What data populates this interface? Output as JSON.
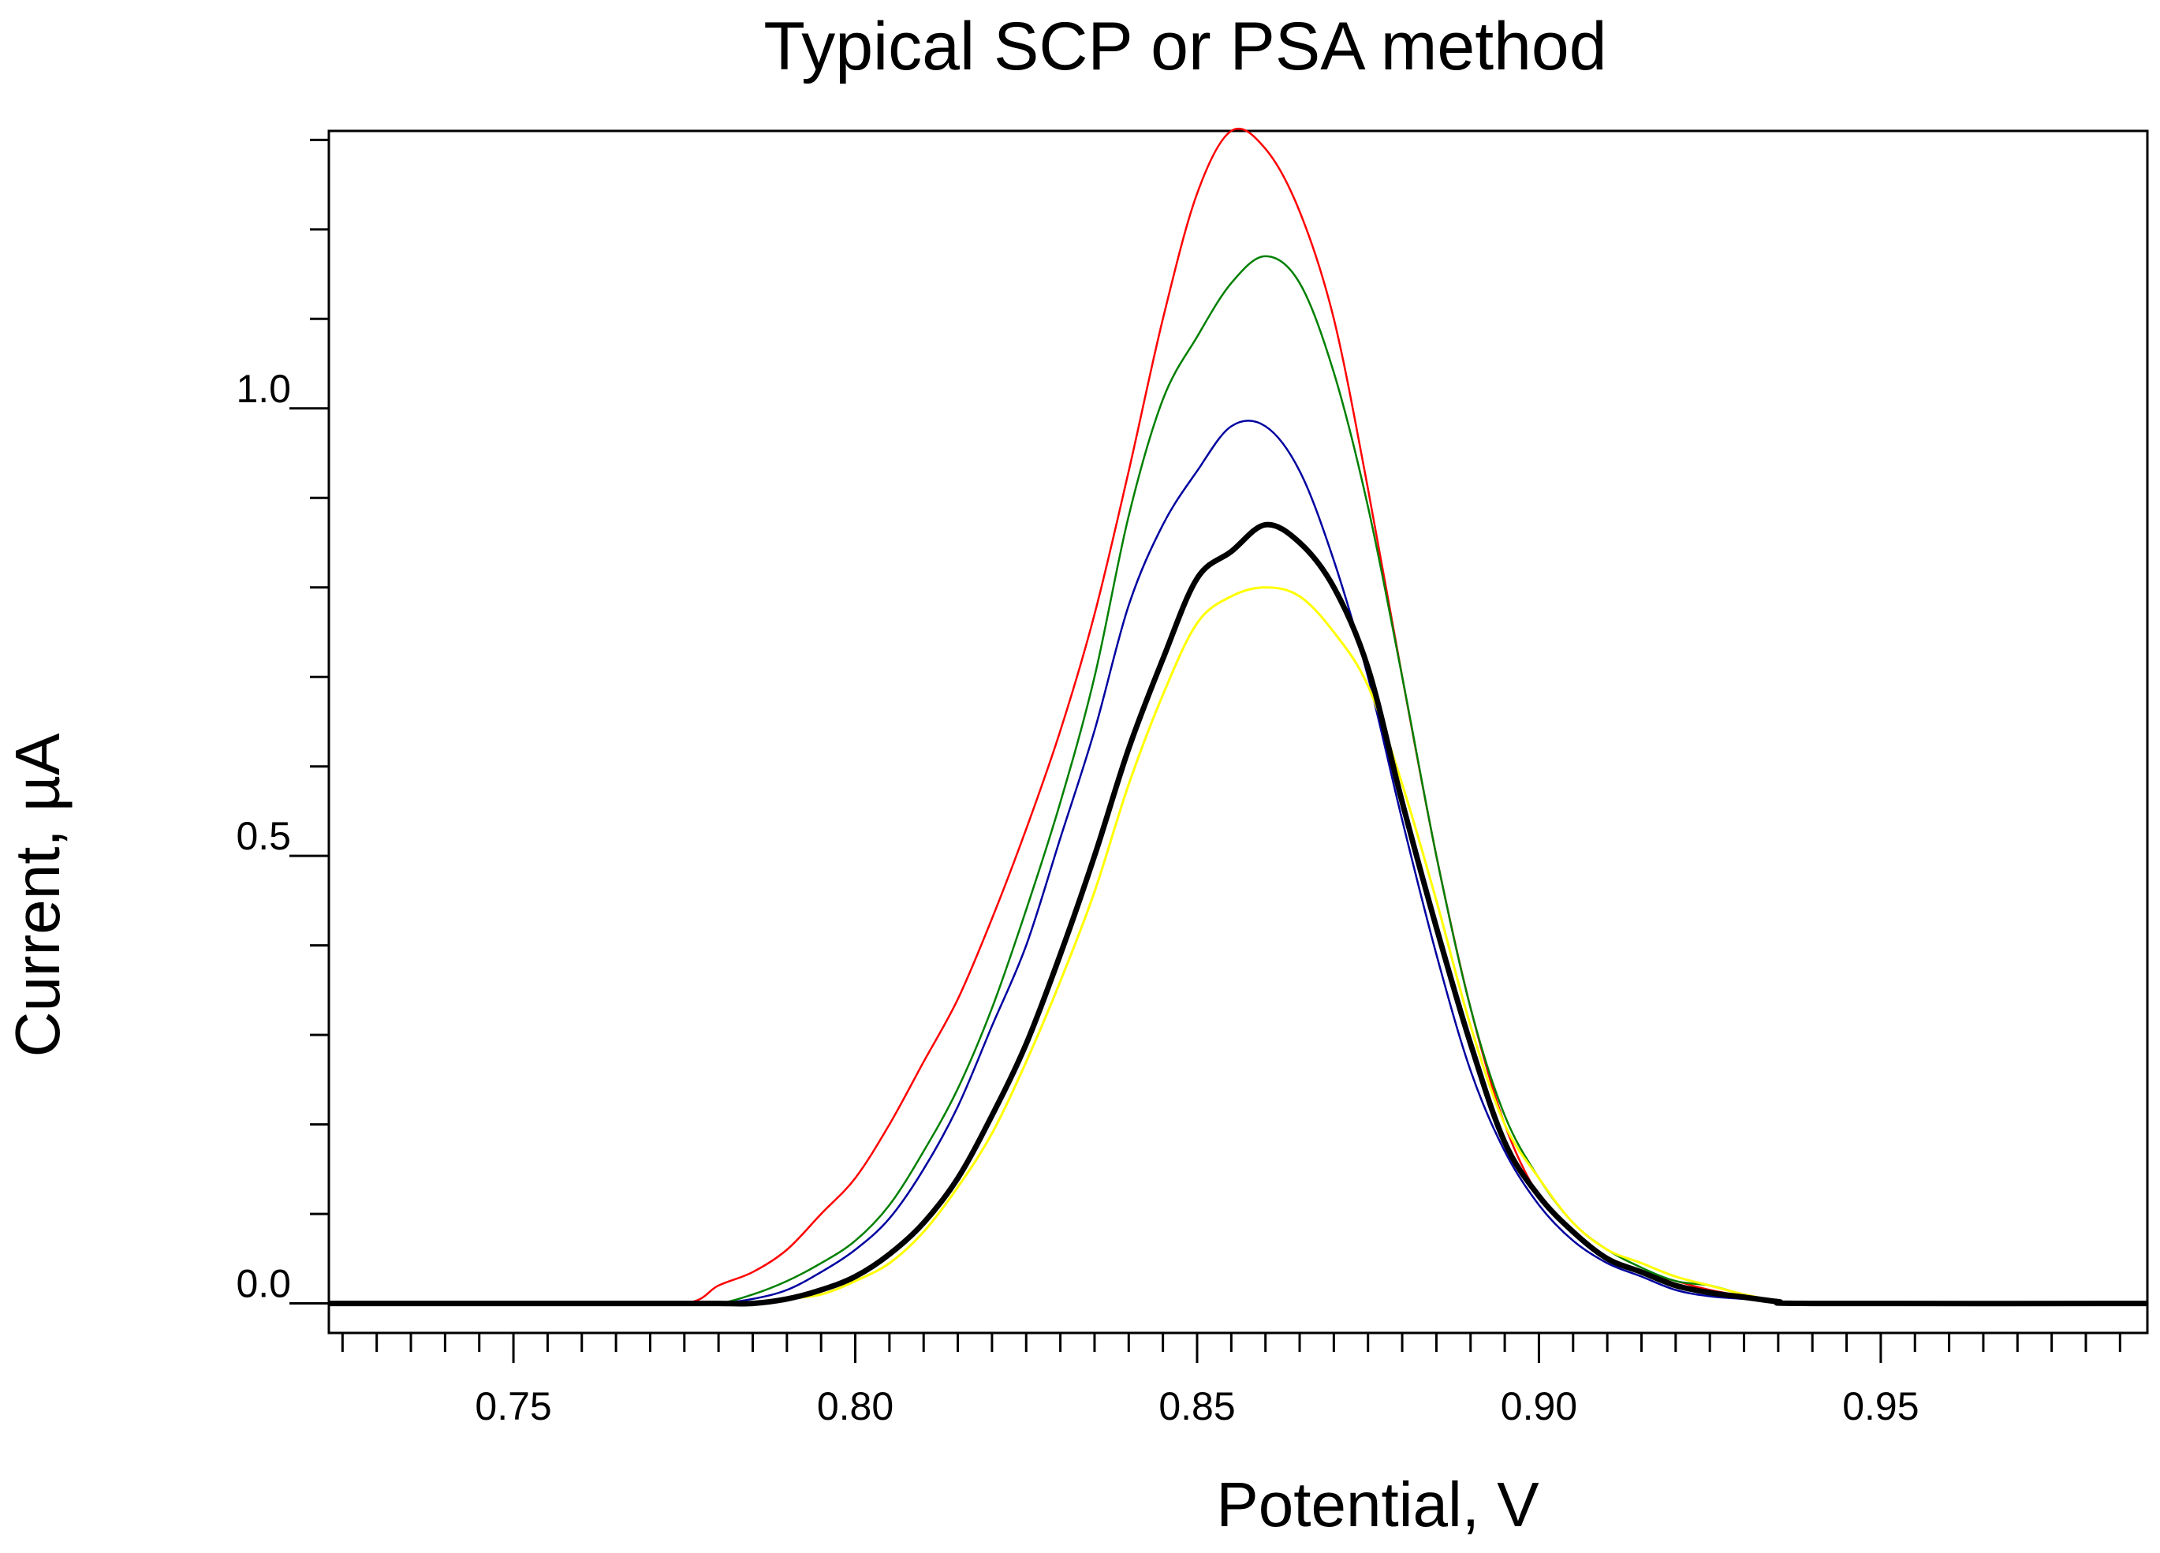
{
  "chart_data": {
    "type": "line",
    "title": "Typical SCP or PSA method",
    "xlabel": "Potential, V",
    "ylabel": "Current, µA",
    "xlim": [
      0.723,
      0.989
    ],
    "ylim": [
      -0.033,
      1.31
    ],
    "x_ticks": [
      {
        "value": 0.75,
        "label": "0.75"
      },
      {
        "value": 0.8,
        "label": "0.80"
      },
      {
        "value": 0.85,
        "label": "0.85"
      },
      {
        "value": 0.9,
        "label": "0.90"
      },
      {
        "value": 0.95,
        "label": "0.95"
      }
    ],
    "x_minor_step": 0.005,
    "y_ticks": [
      {
        "value": 0.0,
        "label": "0.0"
      },
      {
        "value": 0.5,
        "label": "0.5"
      },
      {
        "value": 1.0,
        "label": "1.0"
      }
    ],
    "y_minor_step": 0.1,
    "grid": false,
    "legend": "none",
    "x": [
      0.723,
      0.76,
      0.775,
      0.78,
      0.785,
      0.79,
      0.795,
      0.8,
      0.805,
      0.81,
      0.815,
      0.82,
      0.825,
      0.83,
      0.835,
      0.84,
      0.845,
      0.85,
      0.855,
      0.86,
      0.865,
      0.87,
      0.875,
      0.88,
      0.885,
      0.89,
      0.895,
      0.9,
      0.905,
      0.91,
      0.915,
      0.92,
      0.925,
      0.93,
      0.935,
      0.94,
      0.989
    ],
    "series": [
      {
        "name": "red",
        "color": "#ff0000",
        "width": 2.5,
        "values": [
          0.0,
          0.0,
          0.0,
          0.02,
          0.035,
          0.06,
          0.1,
          0.14,
          0.2,
          0.27,
          0.34,
          0.43,
          0.53,
          0.64,
          0.77,
          0.93,
          1.1,
          1.24,
          1.31,
          1.29,
          1.22,
          1.1,
          0.91,
          0.7,
          0.5,
          0.33,
          0.2,
          0.12,
          0.08,
          0.05,
          0.035,
          0.025,
          0.015,
          0.008,
          0.002,
          0.0,
          0.0
        ]
      },
      {
        "name": "green",
        "color": "#008000",
        "width": 2.5,
        "values": [
          0.0,
          0.0,
          0.0,
          0.0,
          0.01,
          0.025,
          0.045,
          0.07,
          0.11,
          0.17,
          0.24,
          0.33,
          0.44,
          0.56,
          0.7,
          0.88,
          1.01,
          1.08,
          1.14,
          1.17,
          1.14,
          1.04,
          0.89,
          0.7,
          0.5,
          0.33,
          0.21,
          0.14,
          0.09,
          0.06,
          0.04,
          0.025,
          0.02,
          0.01,
          0.003,
          0.0,
          0.0
        ]
      },
      {
        "name": "blue",
        "color": "#0000a0",
        "width": 2.5,
        "values": [
          0.0,
          0.0,
          0.0,
          0.0,
          0.005,
          0.015,
          0.035,
          0.06,
          0.095,
          0.15,
          0.22,
          0.31,
          0.4,
          0.52,
          0.64,
          0.78,
          0.87,
          0.93,
          0.98,
          0.98,
          0.93,
          0.83,
          0.7,
          0.54,
          0.39,
          0.26,
          0.17,
          0.11,
          0.07,
          0.045,
          0.03,
          0.015,
          0.008,
          0.005,
          0.002,
          0.0,
          0.0
        ]
      },
      {
        "name": "yellow",
        "color": "#ffff00",
        "width": 3,
        "values": [
          0.0,
          0.0,
          0.0,
          0.0,
          0.0,
          0.005,
          0.01,
          0.025,
          0.045,
          0.08,
          0.13,
          0.19,
          0.27,
          0.36,
          0.46,
          0.58,
          0.68,
          0.76,
          0.79,
          0.8,
          0.79,
          0.75,
          0.69,
          0.58,
          0.45,
          0.31,
          0.2,
          0.14,
          0.09,
          0.06,
          0.045,
          0.03,
          0.02,
          0.01,
          0.003,
          0.0,
          0.0
        ]
      },
      {
        "name": "black",
        "color": "#000000",
        "width": 7,
        "values": [
          0.0,
          0.0,
          0.0,
          0.0,
          0.0,
          0.005,
          0.015,
          0.03,
          0.055,
          0.09,
          0.14,
          0.21,
          0.29,
          0.39,
          0.5,
          0.62,
          0.72,
          0.81,
          0.84,
          0.87,
          0.85,
          0.8,
          0.71,
          0.56,
          0.42,
          0.29,
          0.18,
          0.12,
          0.08,
          0.05,
          0.035,
          0.02,
          0.012,
          0.007,
          0.002,
          0.0,
          0.0
        ]
      }
    ]
  }
}
